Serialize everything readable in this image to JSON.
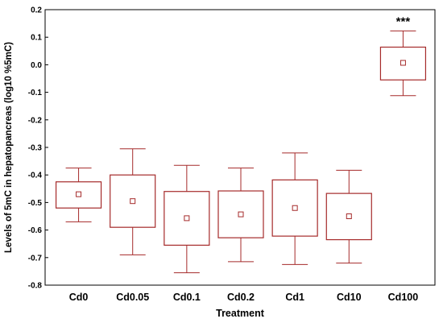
{
  "chart_data": {
    "type": "boxplot",
    "title": "",
    "xlabel": "Treatment",
    "ylabel": "Levels of 5mC in hepatopancreas (log10 %5mC)",
    "ylim": [
      -0.8,
      0.2
    ],
    "yticks": [
      0.2,
      0.1,
      0.0,
      -0.1,
      -0.2,
      -0.3,
      -0.4,
      -0.5,
      -0.6,
      -0.7,
      -0.8
    ],
    "ytick_labels": [
      "0.2",
      "0.1",
      "0.0",
      "-0.1",
      "-0.2",
      "-0.3",
      "-0.4",
      "-0.5",
      "-0.6",
      "-0.7",
      "-0.8"
    ],
    "grid": false,
    "color": "#a52a2a",
    "categories": [
      "Cd0",
      "Cd0.05",
      "Cd0.1",
      "Cd0.2",
      "Cd1",
      "Cd10",
      "Cd100"
    ],
    "boxes": [
      {
        "category": "Cd0",
        "whisker_low": -0.57,
        "q1": -0.52,
        "center": -0.47,
        "q3": -0.425,
        "whisker_high": -0.375
      },
      {
        "category": "Cd0.05",
        "whisker_low": -0.69,
        "q1": -0.59,
        "center": -0.495,
        "q3": -0.4,
        "whisker_high": -0.305
      },
      {
        "category": "Cd0.1",
        "whisker_low": -0.755,
        "q1": -0.655,
        "center": -0.557,
        "q3": -0.46,
        "whisker_high": -0.365
      },
      {
        "category": "Cd0.2",
        "whisker_low": -0.715,
        "q1": -0.628,
        "center": -0.543,
        "q3": -0.458,
        "whisker_high": -0.375
      },
      {
        "category": "Cd1",
        "whisker_low": -0.725,
        "q1": -0.622,
        "center": -0.52,
        "q3": -0.418,
        "whisker_high": -0.32
      },
      {
        "category": "Cd10",
        "whisker_low": -0.72,
        "q1": -0.635,
        "center": -0.55,
        "q3": -0.467,
        "whisker_high": -0.383
      },
      {
        "category": "Cd100",
        "whisker_low": -0.112,
        "q1": -0.055,
        "center": 0.007,
        "q3": 0.064,
        "whisker_high": 0.123
      }
    ],
    "annotations": [
      {
        "category": "Cd100",
        "text": "***"
      }
    ]
  }
}
